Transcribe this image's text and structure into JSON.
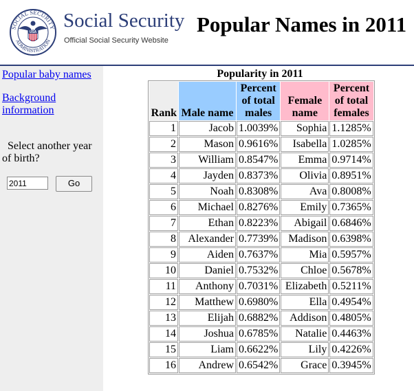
{
  "header": {
    "brand_title": "Social Security",
    "brand_subtitle": "Official Social Security Website",
    "page_title": "Popular Names in 2011",
    "seal": {
      "top_text": "SOCIAL SECURITY",
      "bottom_text": "ADMINISTRATION",
      "center_text": "USA"
    }
  },
  "sidebar": {
    "link_popular": "Popular baby names",
    "link_background": "Background information",
    "year_label": "Select another year of birth?",
    "year_value": "2011",
    "go_label": "Go"
  },
  "table": {
    "caption": "Popularity in 2011",
    "columns": {
      "rank": "Rank",
      "male": "Male name",
      "pct_male": "Percent of total males",
      "female": "Female name",
      "pct_female": "Percent of total females"
    },
    "rows": [
      {
        "rank": "1",
        "male": "Jacob",
        "pm": "1.0039%",
        "female": "Sophia",
        "pf": "1.1285%"
      },
      {
        "rank": "2",
        "male": "Mason",
        "pm": "0.9616%",
        "female": "Isabella",
        "pf": "1.0285%"
      },
      {
        "rank": "3",
        "male": "William",
        "pm": "0.8547%",
        "female": "Emma",
        "pf": "0.9714%"
      },
      {
        "rank": "4",
        "male": "Jayden",
        "pm": "0.8373%",
        "female": "Olivia",
        "pf": "0.8951%"
      },
      {
        "rank": "5",
        "male": "Noah",
        "pm": "0.8308%",
        "female": "Ava",
        "pf": "0.8008%"
      },
      {
        "rank": "6",
        "male": "Michael",
        "pm": "0.8276%",
        "female": "Emily",
        "pf": "0.7365%"
      },
      {
        "rank": "7",
        "male": "Ethan",
        "pm": "0.8223%",
        "female": "Abigail",
        "pf": "0.6846%"
      },
      {
        "rank": "8",
        "male": "Alexander",
        "pm": "0.7739%",
        "female": "Madison",
        "pf": "0.6398%"
      },
      {
        "rank": "9",
        "male": "Aiden",
        "pm": "0.7637%",
        "female": "Mia",
        "pf": "0.5957%"
      },
      {
        "rank": "10",
        "male": "Daniel",
        "pm": "0.7532%",
        "female": "Chloe",
        "pf": "0.5678%"
      },
      {
        "rank": "11",
        "male": "Anthony",
        "pm": "0.7031%",
        "female": "Elizabeth",
        "pf": "0.5211%"
      },
      {
        "rank": "12",
        "male": "Matthew",
        "pm": "0.6980%",
        "female": "Ella",
        "pf": "0.4954%"
      },
      {
        "rank": "13",
        "male": "Elijah",
        "pm": "0.6882%",
        "female": "Addison",
        "pf": "0.4805%"
      },
      {
        "rank": "14",
        "male": "Joshua",
        "pm": "0.6785%",
        "female": "Natalie",
        "pf": "0.4463%"
      },
      {
        "rank": "15",
        "male": "Liam",
        "pm": "0.6622%",
        "female": "Lily",
        "pf": "0.4226%"
      },
      {
        "rank": "16",
        "male": "Andrew",
        "pm": "0.6542%",
        "female": "Grace",
        "pf": "0.3945%"
      }
    ]
  },
  "colors": {
    "brand": "#2c3e78",
    "male_header": "#99ccff",
    "female_header": "#ffbbcc",
    "sidebar_bg": "#eeeeee",
    "link": "#0000ee"
  }
}
